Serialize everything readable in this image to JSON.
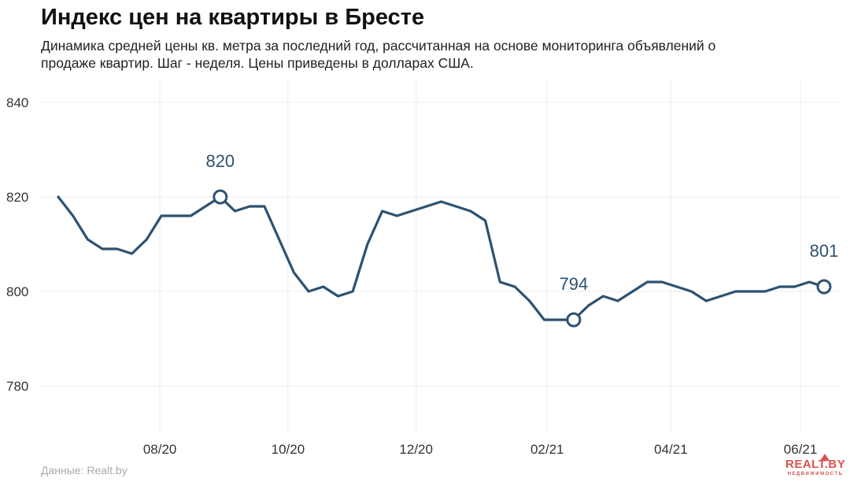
{
  "header": {
    "title": "Индекс цен на квартиры в Бресте",
    "subtitle": "Динамика средней цены кв. метра за последний год, рассчитанная на основе мониторинга объявлений о продаже квартир. Шаг - неделя. Цены приведены в долларах США."
  },
  "footer": {
    "source": "Данные: Realt.by",
    "logo_main": "REALT.BY",
    "logo_sub": "НЕДВИЖИМОСТЬ"
  },
  "colors": {
    "line": "#2d5272",
    "grid": "#ececec",
    "axis_text": "#333333",
    "annotation": "#2d5272",
    "logo": "#d9534f"
  },
  "chart_data": {
    "type": "line",
    "title": "Индекс цен на квартиры в Бресте",
    "xlabel": "",
    "ylabel": "",
    "ylim": [
      770,
      845
    ],
    "y_ticks": [
      780,
      800,
      820,
      840
    ],
    "x_ticks": [
      {
        "label": "08/20",
        "week": 6.9
      },
      {
        "label": "10/20",
        "week": 15.6
      },
      {
        "label": "12/20",
        "week": 24.3
      },
      {
        "label": "02/21",
        "week": 33.2
      },
      {
        "label": "04/21",
        "week": 41.6
      },
      {
        "label": "06/21",
        "week": 50.4
      }
    ],
    "grid": true,
    "series": [
      {
        "values": [
          820,
          816,
          811,
          809,
          809,
          808,
          811,
          816,
          816,
          816,
          818,
          820,
          817,
          818,
          818,
          811,
          804,
          800,
          801,
          799,
          800,
          810,
          817,
          816,
          817,
          818,
          819,
          818,
          817,
          815,
          802,
          801,
          798,
          794,
          794,
          794,
          797,
          799,
          798,
          800,
          802,
          802,
          801,
          800,
          798,
          799,
          800,
          800,
          800,
          801,
          801,
          802,
          801
        ]
      }
    ],
    "annotations": [
      {
        "index": 11,
        "value": 820,
        "label": "820"
      },
      {
        "index": 35,
        "value": 794,
        "label": "794"
      },
      {
        "index": 52,
        "value": 801,
        "label": "801"
      }
    ]
  }
}
